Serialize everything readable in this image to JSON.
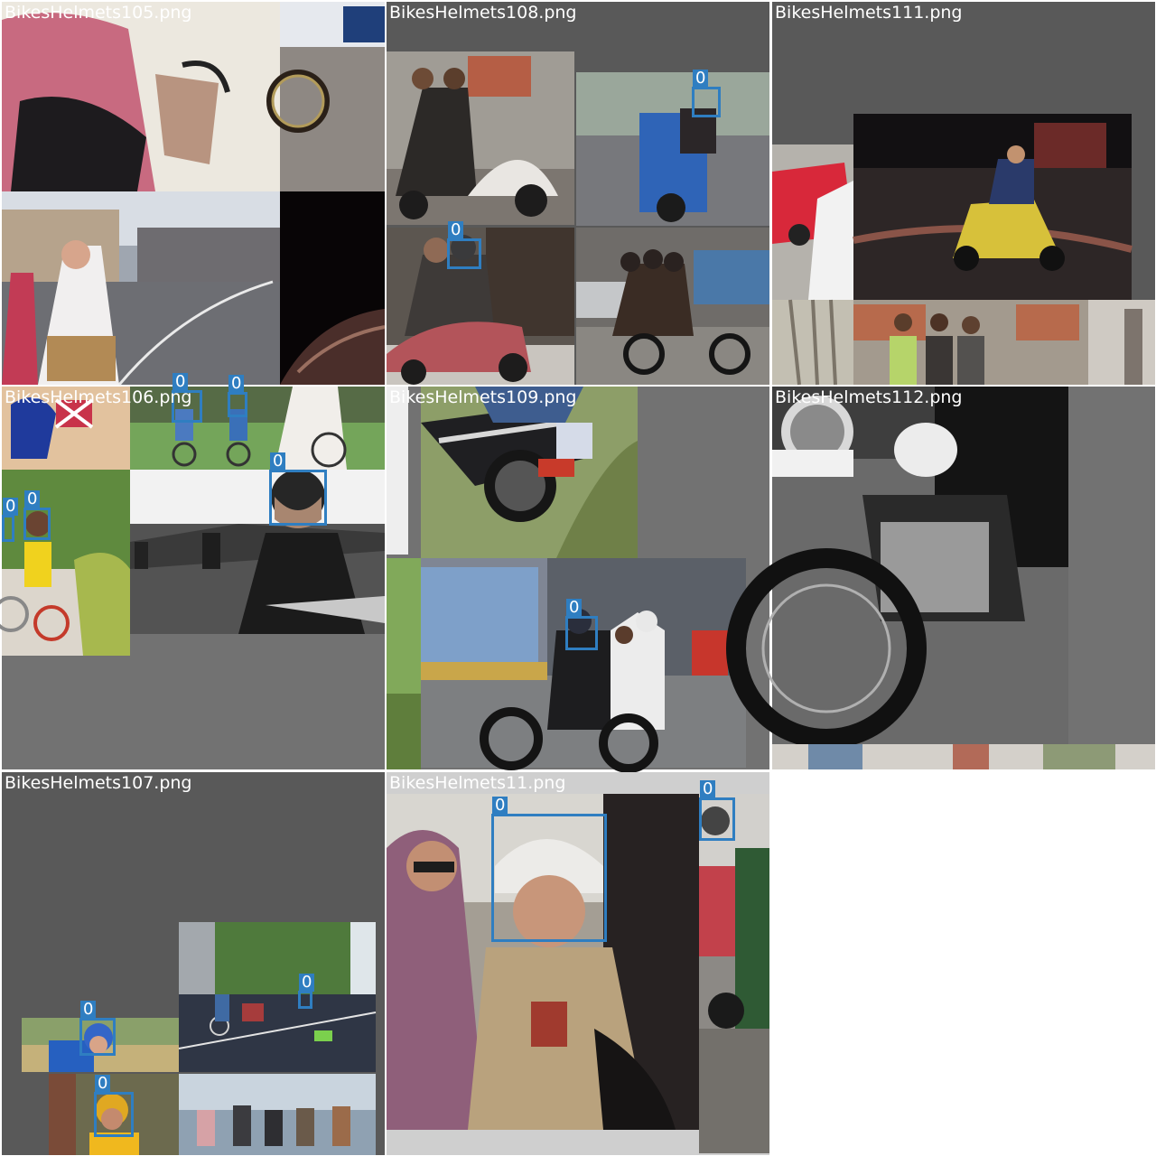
{
  "tiles": [
    {
      "id": "t105",
      "filename": "BikesHelmets105.png",
      "detections": []
    },
    {
      "id": "t108",
      "filename": "BikesHelmets108.png",
      "detections": [
        {
          "label": "0"
        },
        {
          "label": "0"
        }
      ]
    },
    {
      "id": "t111",
      "filename": "BikesHelmets111.png",
      "detections": []
    },
    {
      "id": "t106",
      "filename": "BikesHelmets106.png",
      "detections": [
        {
          "label": "0"
        },
        {
          "label": "0"
        },
        {
          "label": "0"
        },
        {
          "label": "0"
        },
        {
          "label": "0"
        }
      ]
    },
    {
      "id": "t109",
      "filename": "BikesHelmets109.png",
      "detections": [
        {
          "label": "0"
        }
      ]
    },
    {
      "id": "t112",
      "filename": "BikesHelmets112.png",
      "detections": []
    },
    {
      "id": "t107",
      "filename": "BikesHelmets107.png",
      "detections": [
        {
          "label": "0"
        },
        {
          "label": "0"
        },
        {
          "label": "0"
        }
      ]
    },
    {
      "id": "t11",
      "filename": "BikesHelmets11.png",
      "detections": [
        {
          "label": "0"
        },
        {
          "label": "0"
        }
      ]
    }
  ],
  "colors": {
    "box": "#2f7ec1",
    "padding_gray": "#727272",
    "dark_gray": "#595959",
    "background": "#ffffff"
  }
}
